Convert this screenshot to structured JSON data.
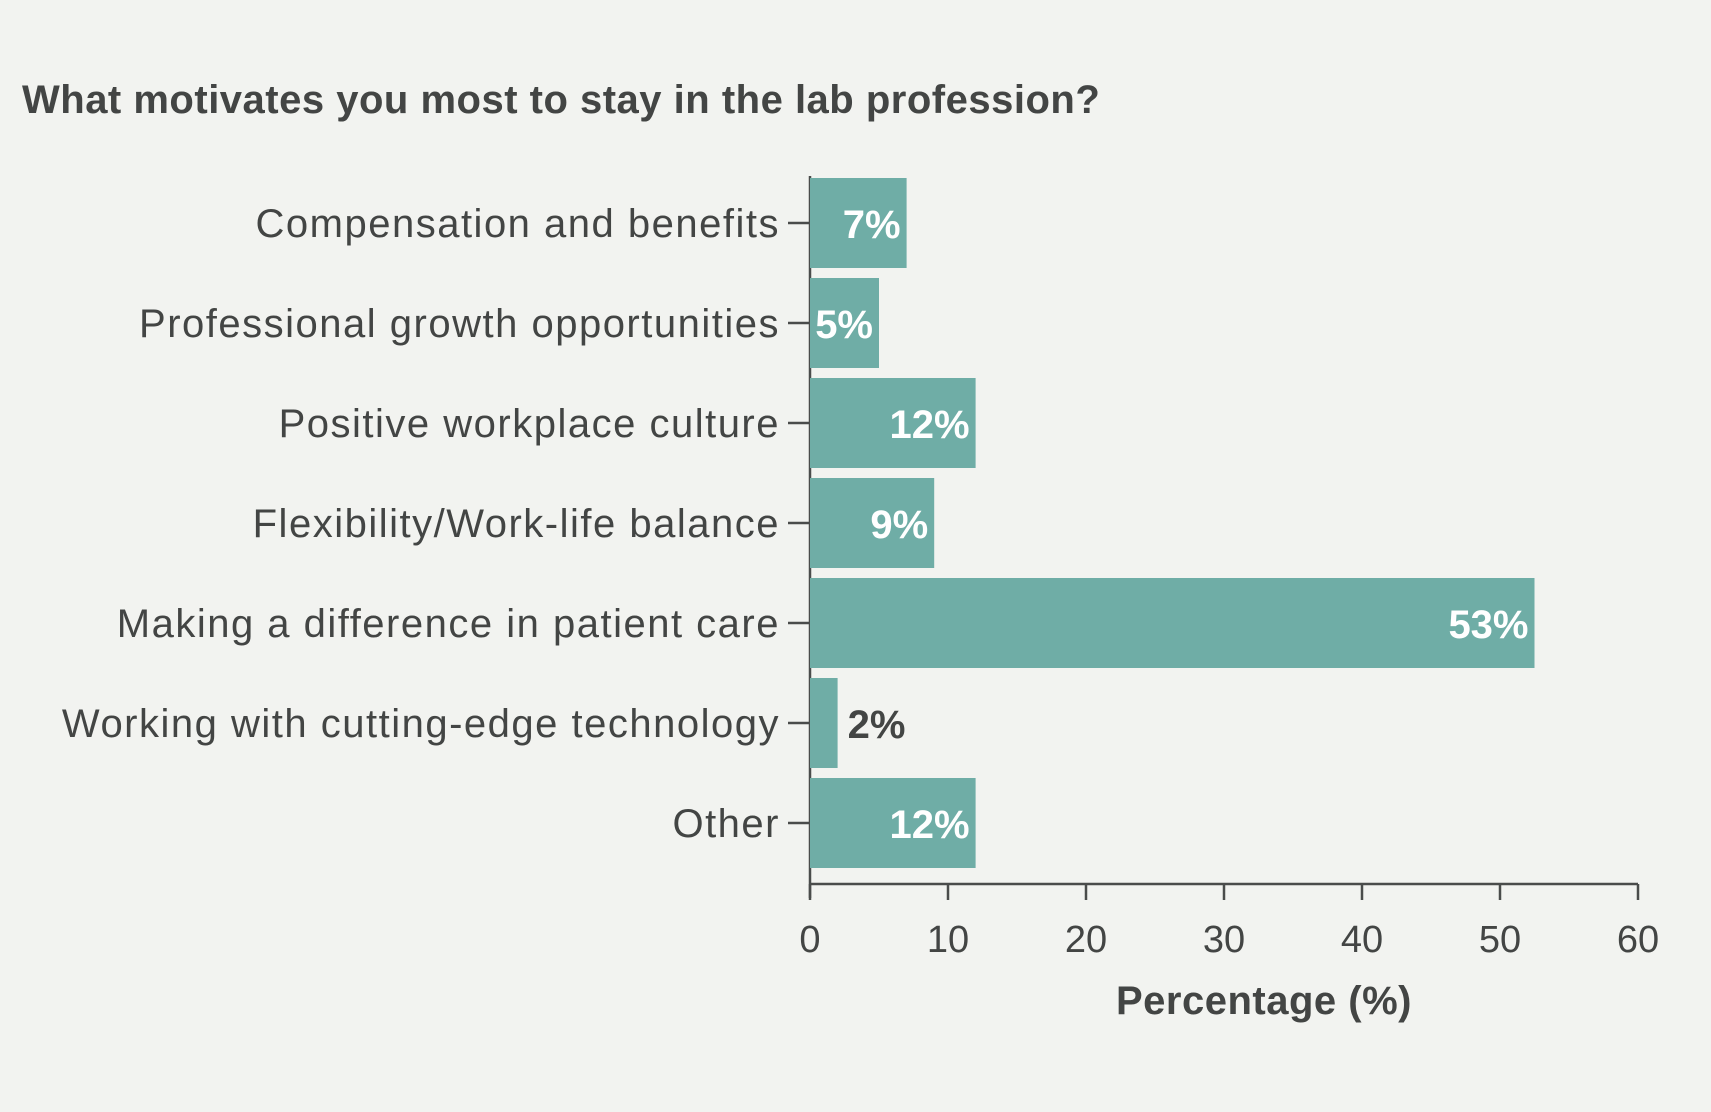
{
  "colors": {
    "bar": "#6fada6",
    "axis": "#4a4c4b",
    "label_inside": "#ffffff",
    "label_outside": "#434544",
    "background": "#f2f3f0"
  },
  "chart_data": {
    "type": "bar",
    "orientation": "horizontal",
    "title": "What motivates you most to stay in the lab profession?",
    "xlabel": "Percentage (%)",
    "ylabel": "",
    "xlim": [
      0,
      60
    ],
    "xticks": [
      0,
      10,
      20,
      30,
      40,
      50,
      60
    ],
    "grid": false,
    "categories": [
      "Compensation and benefits",
      "Professional growth opportunities",
      "Positive workplace culture",
      "Flexibility/Work-life balance",
      "Making a difference in patient care",
      "Working with cutting-edge technology",
      "Other"
    ],
    "values": [
      7,
      5,
      12,
      9,
      52.5,
      2,
      12
    ],
    "value_labels": [
      "7%",
      "5%",
      "12%",
      "9%",
      "53%",
      "2%",
      "12%"
    ]
  }
}
